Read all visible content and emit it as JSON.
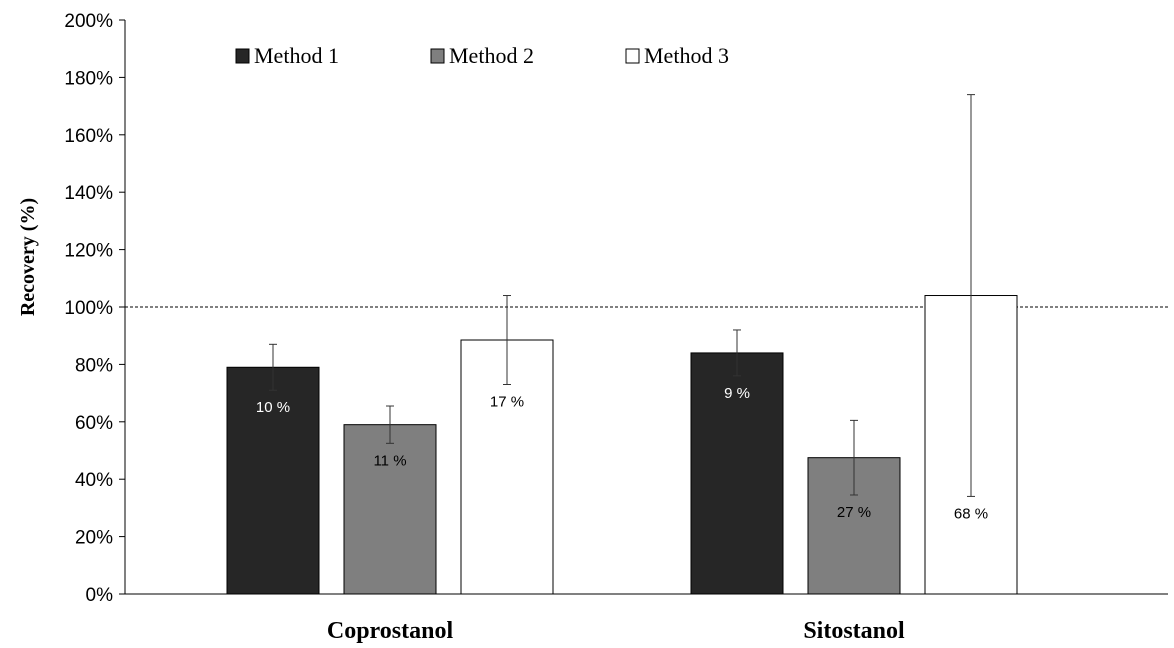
{
  "chart_data": {
    "type": "bar",
    "categories": [
      "Coprostanol",
      "Sitostanol"
    ],
    "series": [
      {
        "name": "Method 1",
        "color": "#262626",
        "label_color": "#ffffff",
        "values": [
          0.79,
          0.84
        ],
        "error": [
          0.08,
          0.08
        ],
        "labels": [
          "10 %",
          "9 %"
        ]
      },
      {
        "name": "Method 2",
        "color": "#7f7f7f",
        "label_color": "#000000",
        "values": [
          0.59,
          0.475
        ],
        "error": [
          0.065,
          0.13
        ],
        "labels": [
          "11 %",
          "27 %"
        ]
      },
      {
        "name": "Method 3",
        "color": "#ffffff",
        "label_color": "#000000",
        "values": [
          0.885,
          1.04
        ],
        "error": [
          0.155,
          0.7
        ],
        "labels": [
          "17 %",
          "68 %"
        ]
      }
    ],
    "ylabel": "Recovery (%)",
    "ylim": [
      0,
      2.0
    ],
    "yticks": [
      "0%",
      "20%",
      "40%",
      "60%",
      "80%",
      "100%",
      "120%",
      "140%",
      "160%",
      "180%",
      "200%"
    ],
    "reference_line": 1.0,
    "legend_position": "top-left",
    "grid": false
  }
}
